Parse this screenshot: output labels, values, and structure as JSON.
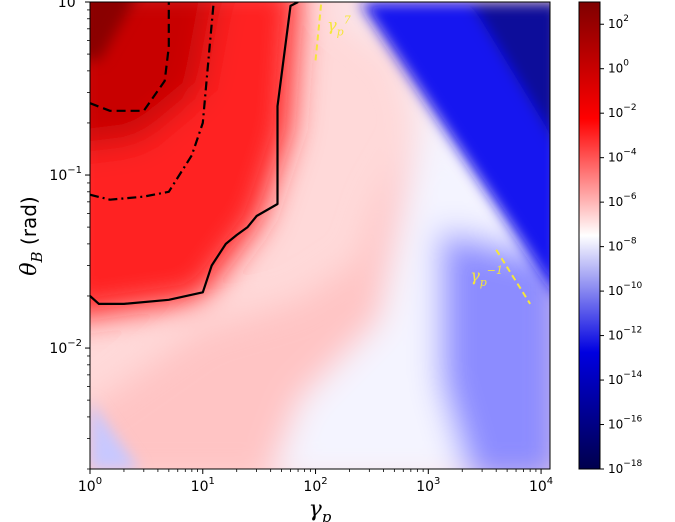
{
  "chart_data": {
    "type": "heatmap",
    "title": "",
    "xlabel": "γ_p",
    "ylabel": "θ_B (rad)",
    "x_scale": "log",
    "y_scale": "log",
    "xlim": [
      1,
      12000
    ],
    "ylim": [
      0.002,
      1.0
    ],
    "x_ticks": [
      {
        "value": 1,
        "base": "10",
        "exp": "0"
      },
      {
        "value": 10,
        "base": "10",
        "exp": "1"
      },
      {
        "value": 100,
        "base": "10",
        "exp": "2"
      },
      {
        "value": 1000,
        "base": "10",
        "exp": "3"
      },
      {
        "value": 10000,
        "base": "10",
        "exp": "4"
      }
    ],
    "y_ticks": [
      {
        "value": 1,
        "base": "10",
        "exp": "0"
      },
      {
        "value": 0.1,
        "base": "10",
        "exp": "−1"
      },
      {
        "value": 0.01,
        "base": "10",
        "exp": "−2"
      }
    ],
    "colorbar": {
      "scale": "log",
      "range": [
        1e-18,
        1000.0
      ],
      "colormap": [
        "#00004c",
        "#0000e0",
        "#ffffff",
        "#ff0000",
        "#7f0000"
      ],
      "ticks": [
        {
          "log10": 2,
          "base": "10",
          "exp": "2"
        },
        {
          "log10": 0,
          "base": "10",
          "exp": "0"
        },
        {
          "log10": -2,
          "base": "10",
          "exp": "−2"
        },
        {
          "log10": -4,
          "base": "10",
          "exp": "−4"
        },
        {
          "log10": -6,
          "base": "10",
          "exp": "−6"
        },
        {
          "log10": -8,
          "base": "10",
          "exp": "−8"
        },
        {
          "log10": -10,
          "base": "10",
          "exp": "−10"
        },
        {
          "log10": -12,
          "base": "10",
          "exp": "−12"
        },
        {
          "log10": -14,
          "base": "10",
          "exp": "−14"
        },
        {
          "log10": -16,
          "base": "10",
          "exp": "−16"
        },
        {
          "log10": -18,
          "base": "10",
          "exp": "−18"
        }
      ]
    },
    "contours": [
      {
        "style": "dashed",
        "points": [
          [
            1,
            0.26
          ],
          [
            1.5,
            0.235
          ],
          [
            3,
            0.235
          ],
          [
            4.6,
            0.35
          ],
          [
            5,
            0.55
          ],
          [
            5,
            1.0
          ]
        ]
      },
      {
        "style": "dashdot",
        "points": [
          [
            1,
            0.077
          ],
          [
            1.5,
            0.072
          ],
          [
            3,
            0.075
          ],
          [
            5,
            0.08
          ],
          [
            8,
            0.13
          ],
          [
            10,
            0.2
          ],
          [
            11.5,
            0.55
          ],
          [
            12.5,
            1.0
          ]
        ]
      },
      {
        "style": "solid",
        "points": [
          [
            1,
            0.02
          ],
          [
            1.2,
            0.018
          ],
          [
            2,
            0.018
          ],
          [
            5,
            0.019
          ],
          [
            10,
            0.021
          ],
          [
            12,
            0.03
          ],
          [
            16,
            0.04
          ],
          [
            20,
            0.045
          ],
          [
            25,
            0.05
          ],
          [
            30,
            0.058
          ],
          [
            46,
            0.068
          ],
          [
            46,
            0.25
          ],
          [
            60,
            0.95
          ],
          [
            70,
            1.0
          ]
        ]
      }
    ],
    "annotations": [
      {
        "text": "γ_p^7",
        "base": "γ",
        "sub": "p",
        "sup": "7",
        "line": [
          [
            100,
            0.46
          ],
          [
            112,
            0.97
          ]
        ]
      },
      {
        "text": "γ_p^−1",
        "base": "γ",
        "sub": "p",
        "sup": "−1",
        "line": [
          [
            4000,
            0.037
          ],
          [
            8000,
            0.018
          ]
        ]
      }
    ],
    "colors": {
      "annotation": "#f5e63a",
      "contour": "#000000"
    }
  }
}
